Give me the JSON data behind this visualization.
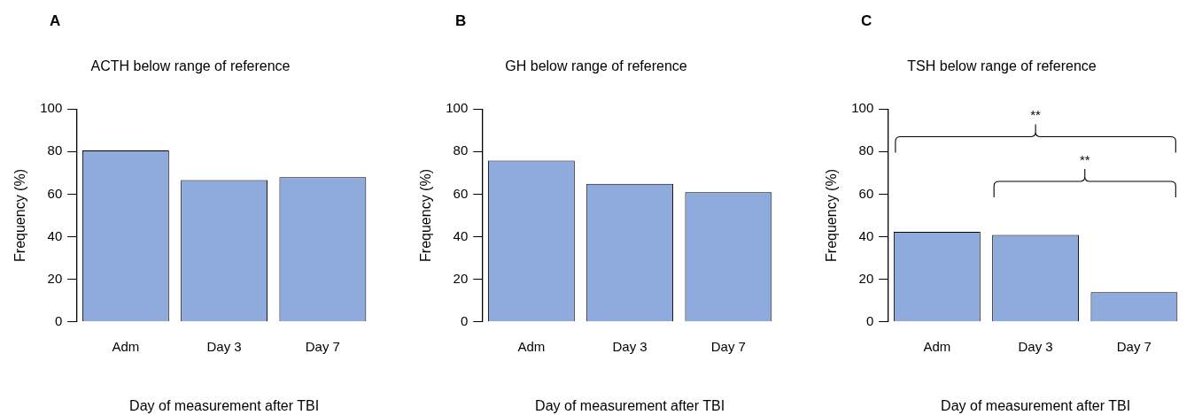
{
  "chart_data": [
    {
      "type": "bar",
      "title": "ACTH below range of reference",
      "xlabel": "Day of measurement after TBI",
      "ylabel": "Frequency (%)",
      "categories": [
        "Adm",
        "Day 3",
        "Day 7"
      ],
      "values": [
        80.5,
        66.6,
        68.0
      ],
      "color": "#8faadc",
      "ylim": [
        0,
        100
      ],
      "yticks": [
        0,
        20,
        40,
        60,
        80,
        100
      ],
      "grid": false,
      "annotations": [
        "A"
      ]
    },
    {
      "type": "bar",
      "title": "GH below range of reference",
      "xlabel": "Day of measurement after TBI",
      "ylabel": "Frequency (%)",
      "categories": [
        "Adm",
        "Day 3",
        "Day 7"
      ],
      "values": [
        75.8,
        64.9,
        60.9
      ],
      "color": "#8faadc",
      "ylim": [
        0,
        100
      ],
      "yticks": [
        0,
        20,
        40,
        60,
        80,
        100
      ],
      "grid": false,
      "annotations": [
        "B"
      ]
    },
    {
      "type": "bar",
      "title": "TSH below range of reference",
      "xlabel": "Day of measurement after TBI",
      "ylabel": "Frequency (%)",
      "categories": [
        "Adm",
        "Day 3",
        "Day 7"
      ],
      "values": [
        42.3,
        40.9,
        13.9
      ],
      "color": "#8faadc",
      "ylim": [
        0,
        100
      ],
      "yticks": [
        0,
        20,
        40,
        60,
        80,
        100
      ],
      "grid": false,
      "annotations": [
        "C",
        "**",
        "**"
      ]
    }
  ]
}
